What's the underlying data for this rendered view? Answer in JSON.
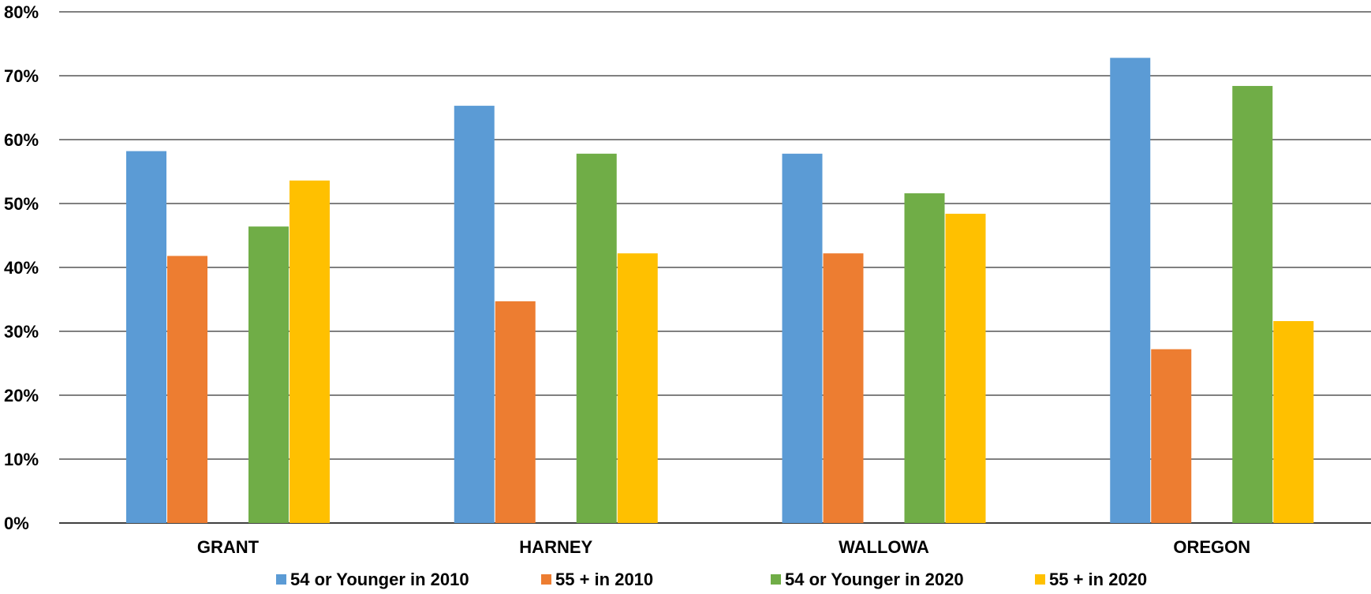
{
  "chart_data": {
    "type": "bar",
    "title": "",
    "xlabel": "",
    "ylabel": "",
    "categories": [
      "GRANT",
      "HARNEY",
      "WALLOWA",
      "OREGON"
    ],
    "ylim": [
      0,
      80
    ],
    "yticks": [
      0,
      10,
      20,
      30,
      40,
      50,
      60,
      70,
      80
    ],
    "ytick_labels": [
      "0%",
      "10%",
      "20%",
      "30%",
      "40%",
      "50%",
      "60%",
      "70%",
      "80%"
    ],
    "grid": true,
    "legend_position": "bottom",
    "series": [
      {
        "name": "54 or Younger in 2010",
        "color": "#5B9BD5",
        "values": [
          58.2,
          65.3,
          57.8,
          72.8
        ]
      },
      {
        "name": "55 + in 2010",
        "color": "#ED7D31",
        "values": [
          41.8,
          34.7,
          42.2,
          27.2
        ]
      },
      {
        "name": "54 or Younger in 2020",
        "color": "#70AD47",
        "values": [
          46.4,
          57.8,
          51.6,
          68.4
        ]
      },
      {
        "name": "55 + in 2020",
        "color": "#FFC000",
        "values": [
          53.6,
          42.2,
          48.4,
          31.6
        ]
      }
    ]
  }
}
